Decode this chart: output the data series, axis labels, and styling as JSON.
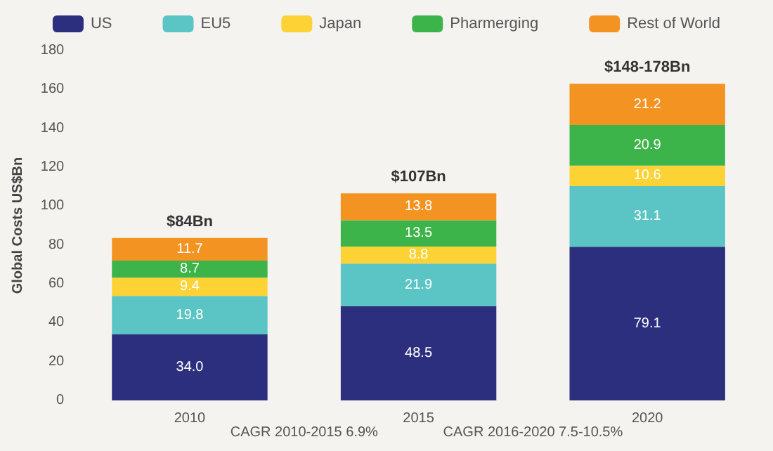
{
  "chart_data": {
    "type": "bar",
    "stacked": true,
    "categories": [
      "2010",
      "2015",
      "2020"
    ],
    "series": [
      {
        "name": "US",
        "color": "#2b2f7e",
        "values": [
          34.0,
          48.5,
          79.1
        ],
        "value_labels": [
          "34.0",
          "48.5",
          "79.1"
        ]
      },
      {
        "name": "EU5",
        "color": "#5bc4c4",
        "values": [
          19.8,
          21.9,
          31.1
        ],
        "value_labels": [
          "19.8",
          "21.9",
          "31.1"
        ]
      },
      {
        "name": "Japan",
        "color": "#fcd235",
        "values": [
          9.4,
          8.8,
          10.6
        ],
        "value_labels": [
          "9.4",
          "8.8",
          "10.6"
        ]
      },
      {
        "name": "Pharmerging",
        "color": "#3db44a",
        "values": [
          8.7,
          13.5,
          20.9
        ],
        "value_labels": [
          "8.7",
          "13.5",
          "20.9"
        ]
      },
      {
        "name": "Rest of World",
        "color": "#f39322",
        "values": [
          11.7,
          13.8,
          21.2
        ],
        "value_labels": [
          "11.7",
          "13.8",
          "21.2"
        ]
      }
    ],
    "ylabel": "Global Costs US$Bn",
    "ylim": [
      0,
      180
    ],
    "yticks": [
      0,
      20,
      40,
      60,
      80,
      100,
      120,
      140,
      160,
      180
    ],
    "totals": [
      "$84Bn",
      "$107Bn",
      "$148-178Bn"
    ],
    "annotations": [
      "CAGR 2010-2015 6.9%",
      "CAGR 2016-2020 7.5-10.5%"
    ],
    "legend": "top",
    "grid": false
  }
}
